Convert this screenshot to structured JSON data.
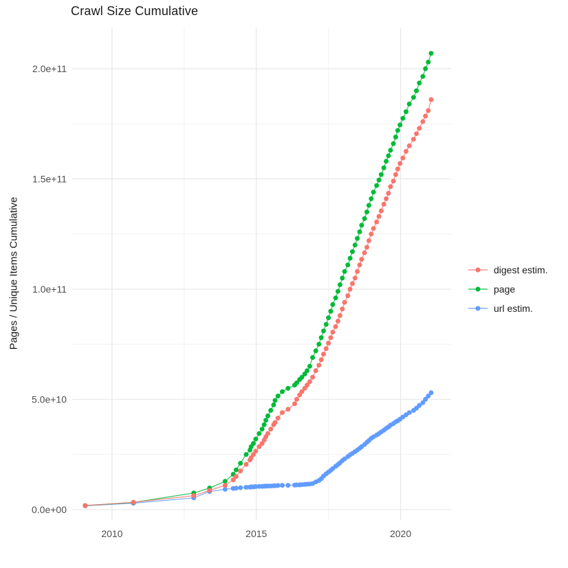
{
  "chart_data": {
    "type": "scatter",
    "title": "Crawl Size Cumulative",
    "xlabel": "",
    "ylabel": "Pages / Unique Items Cumulative",
    "value_unit": "billions of pages / unique items (1e9)",
    "grid": true,
    "legend_position": "right",
    "x_axis": {
      "ticks": [
        2010,
        2015,
        2020
      ],
      "tick_labels": [
        "2010",
        "2015",
        "2020"
      ],
      "minor_ticks": [
        2012.5,
        2017.5
      ],
      "range": [
        2008.62,
        2021.75
      ]
    },
    "y_axis": {
      "ticks": [
        0,
        50,
        100,
        150,
        200
      ],
      "tick_labels": [
        "0.0e+00",
        "5.0e+10",
        "1.0e+11",
        "1.5e+11",
        "2.0e+11"
      ],
      "minor_ticks": [
        25,
        75,
        125,
        175
      ],
      "range": [
        -4.7,
        218.7
      ]
    },
    "x": [
      2009.07,
      2010.74,
      2012.83,
      2013.38,
      2013.92,
      2014.2,
      2014.3,
      2014.45,
      2014.65,
      2014.78,
      2014.82,
      2014.9,
      2014.98,
      2015.1,
      2015.2,
      2015.27,
      2015.33,
      2015.4,
      2015.5,
      2015.6,
      2015.65,
      2015.75,
      2015.9,
      2016.1,
      2016.33,
      2016.4,
      2016.5,
      2016.58,
      2016.68,
      2016.76,
      2016.85,
      2016.95,
      2017.06,
      2017.17,
      2017.25,
      2017.33,
      2017.42,
      2017.5,
      2017.58,
      2017.65,
      2017.75,
      2017.83,
      2017.9,
      2017.98,
      2018.06,
      2018.17,
      2018.25,
      2018.33,
      2018.42,
      2018.5,
      2018.58,
      2018.65,
      2018.75,
      2018.83,
      2018.9,
      2018.98,
      2019.06,
      2019.17,
      2019.25,
      2019.33,
      2019.42,
      2019.5,
      2019.58,
      2019.65,
      2019.75,
      2019.83,
      2019.9,
      2019.98,
      2020.08,
      2020.19,
      2020.3,
      2020.45,
      2020.55,
      2020.65,
      2020.77,
      2020.86,
      2020.96,
      2021.06
    ],
    "series": [
      {
        "name": "digest estim.",
        "color": "#F8766D",
        "values": [
          1.8,
          3.3,
          6.3,
          8.7,
          11,
          13.5,
          15,
          17.5,
          20.5,
          22.5,
          23.5,
          25,
          26.5,
          28.5,
          30,
          31.5,
          33,
          34.5,
          36.5,
          38.5,
          39.5,
          41.5,
          44,
          45.5,
          48,
          50,
          52,
          53.5,
          55,
          56.5,
          58,
          60,
          63,
          65.5,
          68,
          70.5,
          73,
          75.5,
          78,
          80.5,
          83,
          85.5,
          88,
          91,
          94,
          97,
          100,
          102.5,
          105,
          108,
          111,
          113.5,
          116.5,
          119,
          122,
          125,
          127.5,
          130.5,
          133,
          135.5,
          138.5,
          141,
          143.5,
          146.5,
          149,
          152,
          154.5,
          157,
          159.5,
          162.5,
          165,
          168,
          170.5,
          173,
          176,
          178.5,
          181,
          186
        ]
      },
      {
        "name": "page",
        "color": "#00BA38",
        "values": [
          1.8,
          3.2,
          7.5,
          9.8,
          12.8,
          16,
          18,
          21,
          25,
          27,
          28.5,
          30,
          32,
          34.5,
          36.5,
          38.5,
          40.5,
          42.5,
          45,
          47.5,
          49.5,
          51.5,
          53.5,
          55,
          56.5,
          57.5,
          59,
          60,
          61.5,
          63,
          65,
          69,
          72,
          75,
          78,
          81,
          84,
          87,
          90,
          93,
          96,
          99,
          102,
          105,
          108,
          111,
          114,
          117,
          120,
          123,
          126,
          129,
          132,
          135,
          138,
          141,
          144,
          147,
          149.5,
          152,
          155,
          158,
          160.5,
          163,
          166,
          169,
          172,
          174.5,
          177.5,
          180.5,
          184,
          187,
          190,
          193.5,
          196.5,
          200,
          203,
          207
        ]
      },
      {
        "name": "url estim.",
        "color": "#619CFF",
        "values": [
          1.7,
          2.9,
          5.3,
          8.2,
          9.2,
          9.6,
          9.7,
          9.9,
          10.1,
          10.2,
          10.3,
          10.3,
          10.4,
          10.5,
          10.5,
          10.6,
          10.6,
          10.7,
          10.7,
          10.8,
          10.8,
          10.9,
          11,
          11,
          11.1,
          11.2,
          11.2,
          11.3,
          11.4,
          11.5,
          11.6,
          11.8,
          12.5,
          13.2,
          14,
          15.2,
          16.2,
          17,
          17.8,
          18.6,
          19.6,
          20.4,
          21.2,
          22.2,
          23,
          24,
          24.8,
          25.5,
          26.3,
          27,
          27.8,
          28.5,
          29.5,
          30.5,
          31.3,
          32.3,
          33,
          33.8,
          34.5,
          35.2,
          36,
          36.8,
          37.5,
          38.3,
          39,
          39.8,
          40.3,
          41,
          42,
          43,
          44,
          45,
          46,
          47.2,
          48.5,
          50,
          51.5,
          53
        ]
      }
    ],
    "draw_order": [
      2,
      1,
      0
    ]
  }
}
